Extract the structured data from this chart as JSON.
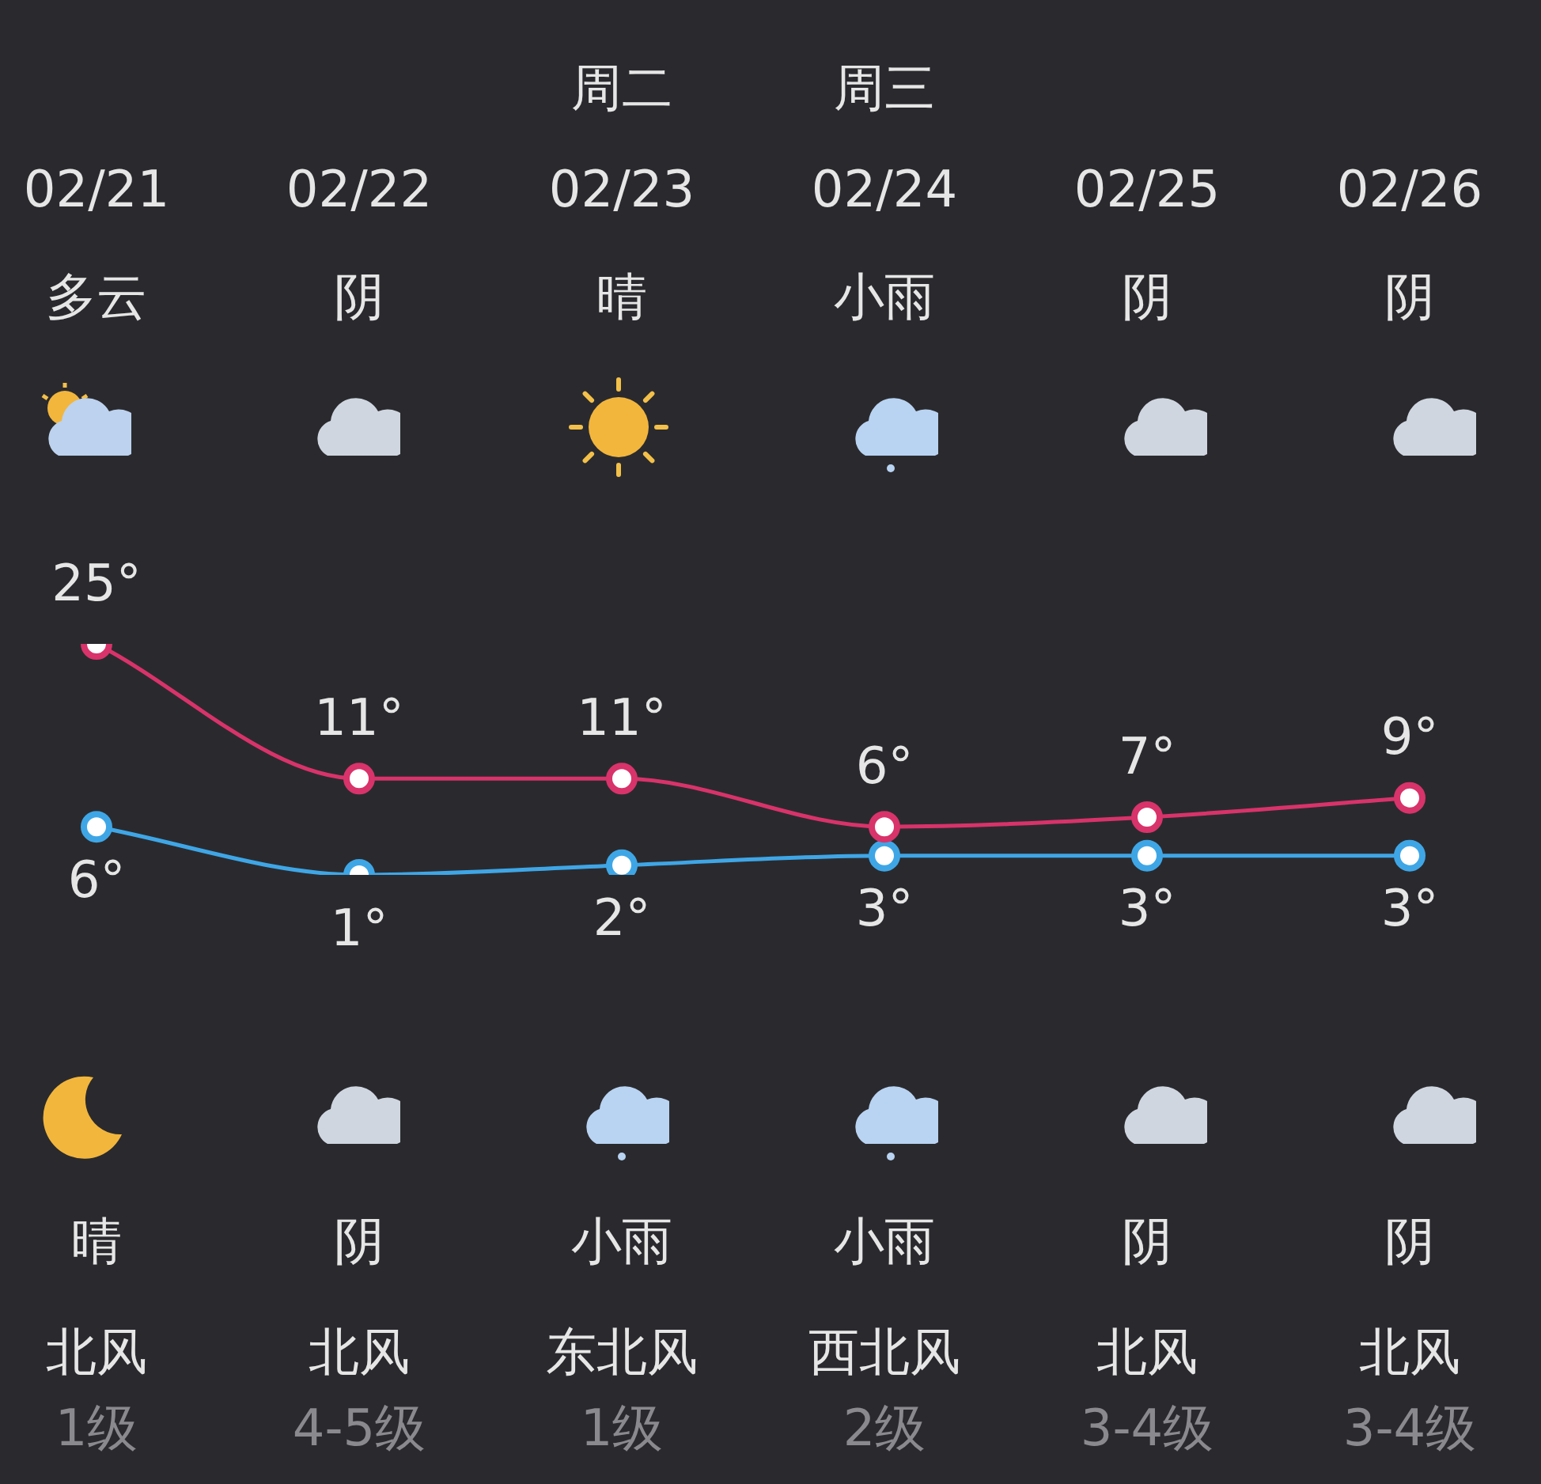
{
  "chart_data": {
    "type": "line",
    "categories": [
      "02/21",
      "02/22",
      "02/23",
      "02/24",
      "02/25",
      "02/26"
    ],
    "series": [
      {
        "color": "#d8336a",
        "values": [
          25,
          11,
          11,
          6,
          7,
          9
        ],
        "value_labels": [
          "25°",
          "11°",
          "11°",
          "6°",
          "7°",
          "9°"
        ]
      },
      {
        "color": "#3fa6e6",
        "values": [
          6,
          1,
          2,
          3,
          3,
          3
        ],
        "value_labels": [
          "6°",
          "1°",
          "2°",
          "3°",
          "3°",
          "3°"
        ]
      }
    ],
    "annotations": [
      "周二",
      "周三",
      "多云",
      "阴",
      "晴",
      "小雨",
      "阴",
      "阴",
      "晴",
      "阴",
      "小雨",
      "小雨",
      "阴",
      "阴",
      "北风",
      "北风",
      "东北风",
      "西北风",
      "北风",
      "北风",
      "1级",
      "4-5级",
      "1级",
      "2级",
      "3-4级",
      "3-4级"
    ],
    "tick_labels": "x",
    "grid": false,
    "legend": false,
    "marker": "circle",
    "line_style": "solid"
  }
}
